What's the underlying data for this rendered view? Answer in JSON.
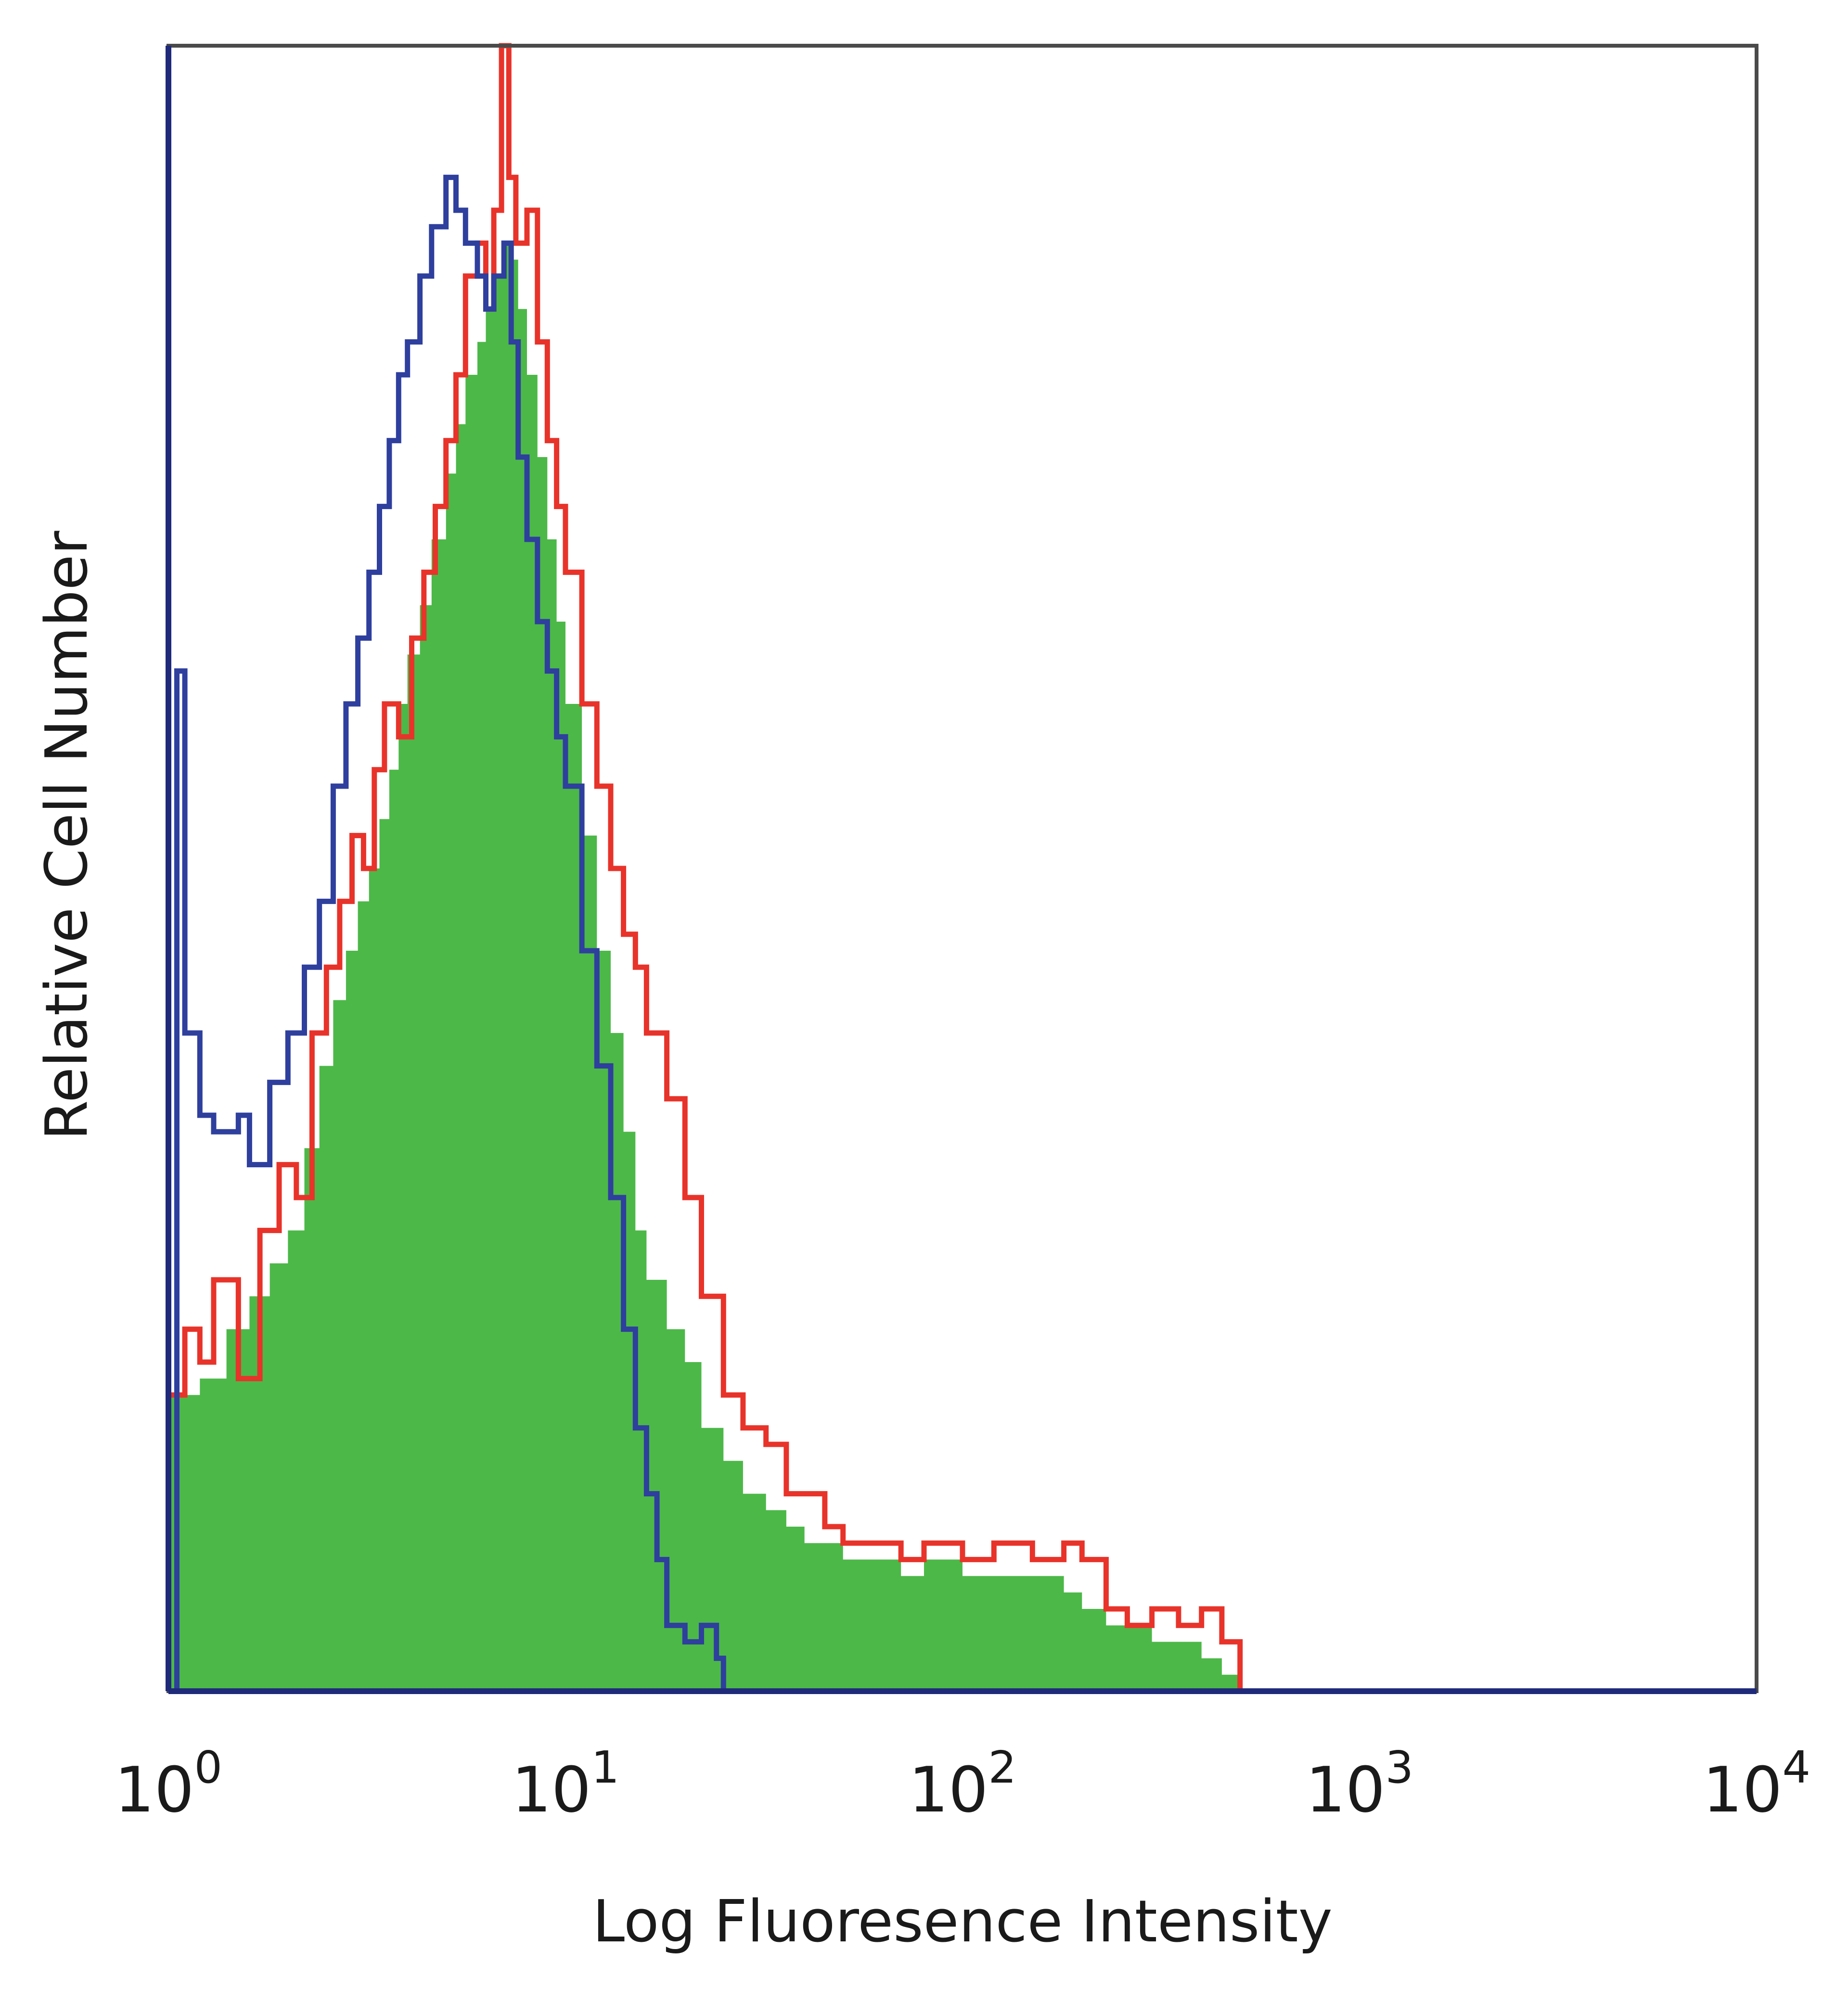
{
  "chart_data": {
    "type": "area",
    "xlabel": "Log Fluoresence Intensity",
    "ylabel": "Relative Cell Number",
    "xscale": "log",
    "xlim": [
      1,
      10000
    ],
    "ylim": [
      0,
      100
    ],
    "grid": false,
    "legend": "none",
    "x_ticks": [
      {
        "base": "10",
        "exp": "0",
        "value": 1
      },
      {
        "base": "10",
        "exp": "1",
        "value": 10
      },
      {
        "base": "10",
        "exp": "2",
        "value": 100
      },
      {
        "base": "10",
        "exp": "3",
        "value": 1000
      },
      {
        "base": "10",
        "exp": "4",
        "value": 10000
      }
    ],
    "series": [
      {
        "style": "filled",
        "color": "#4cb848",
        "x": [
          1,
          1.2,
          1.4,
          1.6,
          1.8,
          2,
          2.2,
          2.4,
          2.6,
          2.8,
          3,
          3.2,
          3.4,
          3.6,
          3.8,
          4,
          4.3,
          4.6,
          5,
          5.3,
          5.6,
          6,
          6.3,
          6.6,
          7,
          7.3,
          7.6,
          8,
          8.5,
          9,
          9.5,
          10,
          11,
          12,
          13,
          14,
          15,
          16,
          18,
          20,
          22,
          25,
          28,
          32,
          36,
          40,
          50,
          60,
          70,
          80,
          100,
          120,
          150,
          180,
          200,
          230,
          260,
          300,
          350,
          400,
          450,
          500
        ],
        "y": [
          18,
          19,
          22,
          24,
          26,
          28,
          33,
          38,
          42,
          45,
          48,
          50,
          53,
          56,
          60,
          63,
          66,
          70,
          74,
          77,
          80,
          82,
          84,
          86,
          88,
          87,
          84,
          80,
          75,
          70,
          65,
          60,
          52,
          45,
          40,
          34,
          28,
          25,
          22,
          20,
          16,
          14,
          12,
          11,
          10,
          9,
          8,
          8,
          7,
          8,
          7,
          7,
          7,
          6,
          5,
          4,
          4,
          3,
          3,
          2,
          1,
          0
        ]
      },
      {
        "style": "line",
        "color": "#e8332a",
        "x": [
          1,
          1.1,
          1.2,
          1.3,
          1.5,
          1.7,
          1.9,
          2.1,
          2.3,
          2.5,
          2.7,
          2.9,
          3.1,
          3.3,
          3.5,
          3.8,
          4.1,
          4.4,
          4.7,
          5,
          5.3,
          5.6,
          6,
          6.3,
          6.6,
          6.9,
          7.2,
          7.5,
          8,
          8.5,
          9,
          9.5,
          10,
          11,
          12,
          13,
          14,
          15,
          16,
          18,
          20,
          22,
          25,
          28,
          32,
          36,
          40,
          45,
          50,
          60,
          70,
          80,
          90,
          100,
          120,
          150,
          180,
          200,
          230,
          260,
          300,
          350,
          400,
          450,
          500
        ],
        "y": [
          18,
          22,
          20,
          25,
          19,
          28,
          32,
          30,
          40,
          44,
          48,
          52,
          50,
          56,
          60,
          58,
          64,
          68,
          72,
          76,
          80,
          86,
          88,
          84,
          90,
          100,
          92,
          88,
          90,
          82,
          76,
          72,
          68,
          60,
          55,
          50,
          46,
          44,
          40,
          36,
          30,
          24,
          18,
          16,
          15,
          12,
          12,
          10,
          9,
          9,
          8,
          9,
          9,
          8,
          9,
          8,
          9,
          8,
          5,
          4,
          5,
          4,
          5,
          3,
          0
        ]
      },
      {
        "style": "line",
        "color": "#2e3f9e",
        "x": [
          1,
          1.05,
          1.1,
          1.2,
          1.3,
          1.4,
          1.5,
          1.6,
          1.8,
          2,
          2.2,
          2.4,
          2.6,
          2.8,
          3,
          3.2,
          3.4,
          3.6,
          3.8,
          4,
          4.3,
          4.6,
          5,
          5.3,
          5.6,
          6,
          6.3,
          6.6,
          7,
          7.3,
          7.6,
          8,
          8.5,
          9,
          9.5,
          10,
          11,
          12,
          13,
          14,
          15,
          16,
          17,
          18,
          20,
          22,
          24,
          25
        ],
        "y": [
          0,
          62,
          40,
          35,
          34,
          34,
          35,
          32,
          37,
          40,
          44,
          48,
          55,
          60,
          64,
          68,
          72,
          76,
          80,
          82,
          86,
          89,
          92,
          90,
          88,
          86,
          84,
          86,
          88,
          82,
          75,
          70,
          65,
          62,
          58,
          55,
          45,
          38,
          30,
          22,
          16,
          12,
          8,
          4,
          3,
          4,
          2,
          0
        ]
      }
    ]
  }
}
